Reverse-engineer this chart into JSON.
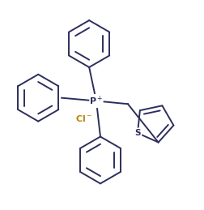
{
  "background_color": "#ffffff",
  "line_color": "#2d2d5e",
  "P_label_color": "#2d2d5e",
  "Cl_label_color": "#b8860b",
  "S_label_color": "#2d2d5e",
  "line_width": 1.4,
  "figsize": [
    2.53,
    2.59
  ],
  "dpi": 100,
  "xlim": [
    0,
    10
  ],
  "ylim": [
    0,
    10
  ]
}
